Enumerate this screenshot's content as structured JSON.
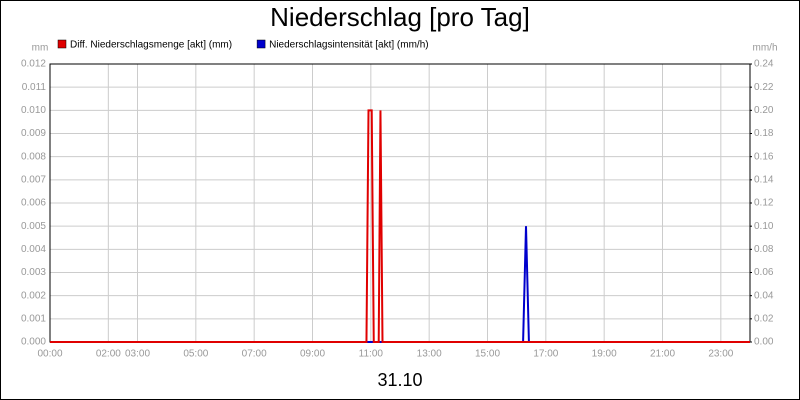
{
  "chart_data": {
    "type": "line",
    "title": "Niederschlag [pro Tag]",
    "y_label": "mm",
    "y2_label": "mm/h",
    "x_label": "31.10",
    "xlim": [
      0,
      24
    ],
    "xticks": [
      {
        "value": 0,
        "label": "00:00"
      },
      {
        "value": 2,
        "label": "02:00"
      },
      {
        "value": 3,
        "label": "03:00"
      },
      {
        "value": 5,
        "label": "05:00"
      },
      {
        "value": 7,
        "label": "07:00"
      },
      {
        "value": 9,
        "label": "09:00"
      },
      {
        "value": 11,
        "label": "11:00"
      },
      {
        "value": 13,
        "label": "13:00"
      },
      {
        "value": 15,
        "label": "15:00"
      },
      {
        "value": 17,
        "label": "17:00"
      },
      {
        "value": 19,
        "label": "19:00"
      },
      {
        "value": 21,
        "label": "21:00"
      },
      {
        "value": 23,
        "label": "23:00"
      }
    ],
    "ylim": [
      0,
      0.012
    ],
    "yticks": [
      {
        "value": 0,
        "label": "0.000"
      },
      {
        "value": 0.001,
        "label": "0.001"
      },
      {
        "value": 0.002,
        "label": "0.002"
      },
      {
        "value": 0.003,
        "label": "0.003"
      },
      {
        "value": 0.004,
        "label": "0.004"
      },
      {
        "value": 0.005,
        "label": "0.005"
      },
      {
        "value": 0.006,
        "label": "0.006"
      },
      {
        "value": 0.007,
        "label": "0.007"
      },
      {
        "value": 0.008,
        "label": "0.008"
      },
      {
        "value": 0.009,
        "label": "0.009"
      },
      {
        "value": 0.01,
        "label": "0.010"
      },
      {
        "value": 0.011,
        "label": "0.011"
      },
      {
        "value": 0.012,
        "label": "0.012"
      }
    ],
    "y2lim": [
      0,
      0.24
    ],
    "y2ticks": [
      {
        "value": 0,
        "label": "0.00"
      },
      {
        "value": 0.02,
        "label": "0.02"
      },
      {
        "value": 0.04,
        "label": "0.04"
      },
      {
        "value": 0.06,
        "label": "0.06"
      },
      {
        "value": 0.08,
        "label": "0.08"
      },
      {
        "value": 0.1,
        "label": "0.10"
      },
      {
        "value": 0.12,
        "label": "0.12"
      },
      {
        "value": 0.14,
        "label": "0.14"
      },
      {
        "value": 0.16,
        "label": "0.16"
      },
      {
        "value": 0.18,
        "label": "0.18"
      },
      {
        "value": 0.2,
        "label": "0.20"
      },
      {
        "value": 0.22,
        "label": "0.22"
      },
      {
        "value": 0.24,
        "label": "0.24"
      }
    ],
    "grid": true,
    "series": [
      {
        "name": "Diff. Niederschlagsmenge [akt] (mm)",
        "color": "#e00000",
        "x": [
          0,
          10.85,
          10.92,
          11.03,
          11.1,
          11.27,
          11.33,
          11.4,
          24
        ],
        "values": [
          0,
          0,
          0.01,
          0.01,
          0,
          0,
          0.01,
          0,
          0
        ]
      },
      {
        "name": "Niederschlagsintensität [akt] (mm/h)",
        "color": "#0000cc",
        "axis": "y2",
        "x": [
          0,
          16.22,
          16.32,
          16.42,
          24
        ],
        "values": [
          0,
          0,
          0.1,
          0,
          0
        ]
      }
    ]
  }
}
